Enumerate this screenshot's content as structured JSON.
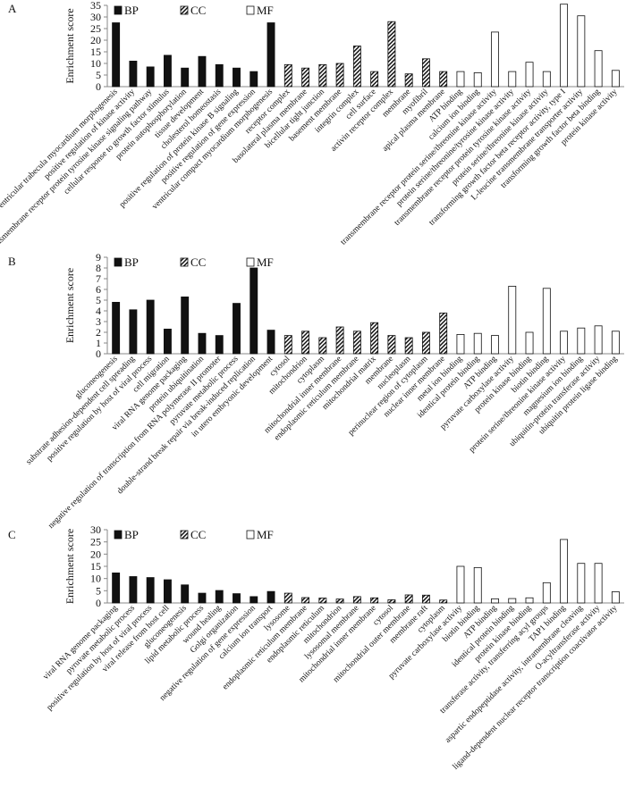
{
  "patterns": {
    "BP": "solid",
    "CC": "hatch",
    "MF": "open"
  },
  "chart_data": [
    {
      "type": "bar",
      "panel_label": "A",
      "ylabel": "Enrichment score",
      "ylim": [
        0,
        35
      ],
      "yticks": [
        0,
        5,
        10,
        15,
        20,
        25,
        30,
        35
      ],
      "legend": [
        "BP",
        "CC",
        "MF"
      ],
      "categories": [
        {
          "label": "ventricular trabecula myocardium morphogenesis",
          "value": 27.5,
          "group": "BP"
        },
        {
          "label": "positive regulation of kinase activity",
          "value": 11,
          "group": "BP"
        },
        {
          "label": "transmembrane receptor protein tyrosine kinase signaling pathway",
          "value": 8.5,
          "group": "BP"
        },
        {
          "label": "cellular response to growth factor stimulus",
          "value": 13.5,
          "group": "BP"
        },
        {
          "label": "protein autophosphorylation",
          "value": 8,
          "group": "BP"
        },
        {
          "label": "tissue development",
          "value": 13,
          "group": "BP"
        },
        {
          "label": "cholesterol homeostasis",
          "value": 9.5,
          "group": "BP"
        },
        {
          "label": "positive regulation of protein kinase B signaling",
          "value": 8,
          "group": "BP"
        },
        {
          "label": "positive regulation of gene expression",
          "value": 6.5,
          "group": "BP"
        },
        {
          "label": "ventricular compact myocardium morphogenesis",
          "value": 27.5,
          "group": "BP"
        },
        {
          "label": "receptor complex",
          "value": 9.5,
          "group": "CC"
        },
        {
          "label": "basolateral plasma membrane",
          "value": 8,
          "group": "CC"
        },
        {
          "label": "bicellular tight junction",
          "value": 9.5,
          "group": "CC"
        },
        {
          "label": "basement membrane",
          "value": 10,
          "group": "CC"
        },
        {
          "label": "integrin complex",
          "value": 17.5,
          "group": "CC"
        },
        {
          "label": "cell surface",
          "value": 6.5,
          "group": "CC"
        },
        {
          "label": "activin receptor complex",
          "value": 28,
          "group": "CC"
        },
        {
          "label": "membrane",
          "value": 5.5,
          "group": "CC"
        },
        {
          "label": "myofibril",
          "value": 12,
          "group": "CC"
        },
        {
          "label": "apical plasma membrane",
          "value": 6.5,
          "group": "CC"
        },
        {
          "label": "ATP binding",
          "value": 6.5,
          "group": "MF"
        },
        {
          "label": "calcium ion binding",
          "value": 6,
          "group": "MF"
        },
        {
          "label": "transmembrane receptor protein serine/threonine kinase activity",
          "value": 23.5,
          "group": "MF"
        },
        {
          "label": "protein serine/threonine/tyrosine kinase activity",
          "value": 6.5,
          "group": "MF"
        },
        {
          "label": "transmembrane receptor protein tyrosine kinase activity",
          "value": 10.5,
          "group": "MF"
        },
        {
          "label": "protein serine/threonine kinase activity",
          "value": 6.5,
          "group": "MF"
        },
        {
          "label": "transforming growth factor beta receptor activity, type I",
          "value": 35.5,
          "group": "MF"
        },
        {
          "label": "L-leucine transmembrane transporter activity",
          "value": 30.5,
          "group": "MF"
        },
        {
          "label": "transforming growth factor beta binding",
          "value": 15.5,
          "group": "MF"
        },
        {
          "label": "protein kinase activity",
          "value": 7,
          "group": "MF"
        }
      ]
    },
    {
      "type": "bar",
      "panel_label": "B",
      "ylabel": "Enrichment score",
      "ylim": [
        0,
        9
      ],
      "yticks": [
        0,
        1,
        2,
        3,
        4,
        5,
        6,
        7,
        8,
        9
      ],
      "legend": [
        "BP",
        "CC",
        "MF"
      ],
      "categories": [
        {
          "label": "gluconeogenesis",
          "value": 4.8,
          "group": "BP"
        },
        {
          "label": "substrate adhesion-dependent cell spreading",
          "value": 4.1,
          "group": "BP"
        },
        {
          "label": "positive regulation by host of viral process",
          "value": 5,
          "group": "BP"
        },
        {
          "label": "cell migration",
          "value": 2.3,
          "group": "BP"
        },
        {
          "label": "viral RNA genome packaging",
          "value": 5.3,
          "group": "BP"
        },
        {
          "label": "protein ubiquitination",
          "value": 1.9,
          "group": "BP"
        },
        {
          "label": "negative regulation of transcription from RNA polymerase II promoter",
          "value": 1.7,
          "group": "BP"
        },
        {
          "label": "pyruvate metabolic process",
          "value": 4.7,
          "group": "BP"
        },
        {
          "label": "double-strand break repair via break-induced replication",
          "value": 8,
          "group": "BP"
        },
        {
          "label": "in utero embryonic development",
          "value": 2.2,
          "group": "BP"
        },
        {
          "label": "cytosol",
          "value": 1.7,
          "group": "CC"
        },
        {
          "label": "mitochondrion",
          "value": 2.1,
          "group": "CC"
        },
        {
          "label": "cytoplasm",
          "value": 1.5,
          "group": "CC"
        },
        {
          "label": "mitochondrial inner membrane",
          "value": 2.5,
          "group": "CC"
        },
        {
          "label": "endoplasmic reticulum membrane",
          "value": 2.1,
          "group": "CC"
        },
        {
          "label": "mitochondrial matrix",
          "value": 2.9,
          "group": "CC"
        },
        {
          "label": "membrane",
          "value": 1.7,
          "group": "CC"
        },
        {
          "label": "nucleoplasm",
          "value": 1.5,
          "group": "CC"
        },
        {
          "label": "perinuclear region of cytoplasm",
          "value": 2,
          "group": "CC"
        },
        {
          "label": "nuclear inner membrane",
          "value": 3.8,
          "group": "CC"
        },
        {
          "label": "metal ion binding",
          "value": 1.8,
          "group": "MF"
        },
        {
          "label": "identical protein binding",
          "value": 1.9,
          "group": "MF"
        },
        {
          "label": "ATP binding",
          "value": 1.7,
          "group": "MF"
        },
        {
          "label": "pyruvate carboxylase activity",
          "value": 6.3,
          "group": "MF"
        },
        {
          "label": "protein kinase binding",
          "value": 2,
          "group": "MF"
        },
        {
          "label": "biotin binding",
          "value": 6.1,
          "group": "MF"
        },
        {
          "label": "protein serine/threonine kinase activity",
          "value": 2.1,
          "group": "MF"
        },
        {
          "label": "magnesium ion binding",
          "value": 2.4,
          "group": "MF"
        },
        {
          "label": "ubiquitin-protein transferase activity",
          "value": 2.6,
          "group": "MF"
        },
        {
          "label": "ubiquitin protein ligase binding",
          "value": 2.1,
          "group": "MF"
        }
      ]
    },
    {
      "type": "bar",
      "panel_label": "C",
      "ylabel": "Enrichment score",
      "ylim": [
        0,
        30
      ],
      "yticks": [
        0,
        5,
        10,
        15,
        20,
        25,
        30
      ],
      "legend": [
        "BP",
        "CC",
        "MF"
      ],
      "categories": [
        {
          "label": "viral RNA genome packaging",
          "value": 12.3,
          "group": "BP"
        },
        {
          "label": "pyruvate metabolic process",
          "value": 10.8,
          "group": "BP"
        },
        {
          "label": "positive regulation by host of viral process",
          "value": 10.4,
          "group": "BP"
        },
        {
          "label": "viral release from host cell",
          "value": 9.5,
          "group": "BP"
        },
        {
          "label": "gluconeogenesis",
          "value": 7.4,
          "group": "BP"
        },
        {
          "label": "lipid metabolic process",
          "value": 4,
          "group": "BP"
        },
        {
          "label": "wound healing",
          "value": 5.1,
          "group": "BP"
        },
        {
          "label": "Golgi organization",
          "value": 3.8,
          "group": "BP"
        },
        {
          "label": "negative regulation of gene expression",
          "value": 2.6,
          "group": "BP"
        },
        {
          "label": "calcium ion transport",
          "value": 4.7,
          "group": "BP"
        },
        {
          "label": "lysosome",
          "value": 4,
          "group": "CC"
        },
        {
          "label": "endoplasmic reticulum membrane",
          "value": 2.2,
          "group": "CC"
        },
        {
          "label": "endoplasmic reticulum",
          "value": 2,
          "group": "CC"
        },
        {
          "label": "mitochondrion",
          "value": 1.6,
          "group": "CC"
        },
        {
          "label": "lysosomal membrane",
          "value": 2.6,
          "group": "CC"
        },
        {
          "label": "mitochondrial inner membrane",
          "value": 2.1,
          "group": "CC"
        },
        {
          "label": "cytosol",
          "value": 1.3,
          "group": "CC"
        },
        {
          "label": "mitochondrial outer membrane",
          "value": 3.3,
          "group": "CC"
        },
        {
          "label": "membrane raft",
          "value": 3.2,
          "group": "CC"
        },
        {
          "label": "cytoplasm",
          "value": 1.2,
          "group": "CC"
        },
        {
          "label": "pyruvate carboxylase activity",
          "value": 15,
          "group": "MF"
        },
        {
          "label": "biotin binding",
          "value": 14.5,
          "group": "MF"
        },
        {
          "label": "ATP binding",
          "value": 1.7,
          "group": "MF"
        },
        {
          "label": "identical protein binding",
          "value": 1.8,
          "group": "MF"
        },
        {
          "label": "protein kinase binding",
          "value": 2.1,
          "group": "MF"
        },
        {
          "label": "transferase activity, transferring acyl groups",
          "value": 8.3,
          "group": "MF"
        },
        {
          "label": "TAP1 binding",
          "value": 26,
          "group": "MF"
        },
        {
          "label": "aspartic endopeptidase activity, intramembrane cleaving",
          "value": 16.2,
          "group": "MF"
        },
        {
          "label": "O-acyltransferase activity",
          "value": 16.2,
          "group": "MF"
        },
        {
          "label": "ligand-dependent nuclear receptor transcription coactivator activity",
          "value": 4.6,
          "group": "MF"
        }
      ]
    }
  ]
}
